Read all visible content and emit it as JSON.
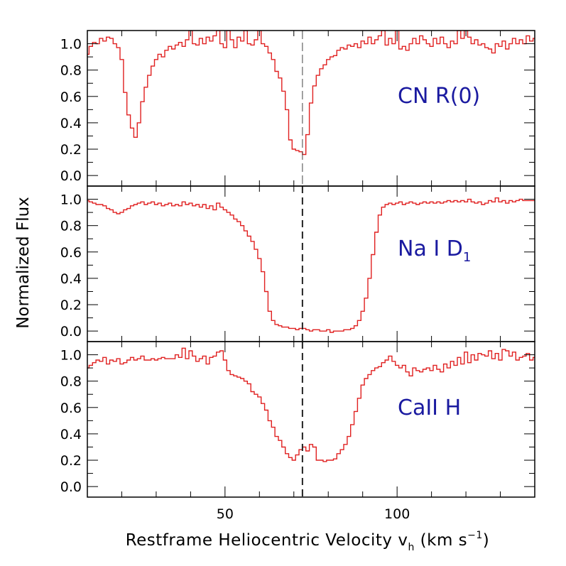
{
  "chart_data": {
    "type": "line",
    "style": "step",
    "title": "",
    "xlabel": "Restframe Heliocentric Velocity v",
    "xlabel_sub": "h",
    "xlabel_units": "(km s",
    "xlabel_units_sup": "−1",
    "xlabel_units_close": ")",
    "ylabel": "Normalized Flux",
    "xlim": [
      10,
      140
    ],
    "ylim": [
      -0.08,
      1.1
    ],
    "xticks": [
      50,
      100
    ],
    "xtick_labels": [
      "50",
      "100"
    ],
    "yticks": [
      0.0,
      0.2,
      0.4,
      0.6,
      0.8,
      1.0
    ],
    "ytick_labels": [
      "0.0",
      "0.2",
      "0.4",
      "0.6",
      "0.8",
      "1.0"
    ],
    "reference_velocity": 72.5,
    "line_color": "#e02020",
    "label_color": "#1a1aa0",
    "panels": [
      {
        "name": "cn",
        "label": "CN R(0)",
        "dashed_ref_style": "thin",
        "x": [
          10,
          11,
          12,
          13,
          14,
          15,
          16,
          17,
          18,
          19,
          20,
          21,
          22,
          23,
          24,
          25,
          26,
          27,
          28,
          29,
          30,
          31,
          32,
          33,
          34,
          35,
          36,
          37,
          38,
          39,
          40,
          41,
          42,
          43,
          44,
          45,
          46,
          47,
          48,
          49,
          50,
          51,
          52,
          53,
          54,
          55,
          56,
          57,
          58,
          59,
          60,
          61,
          62,
          63,
          64,
          65,
          66,
          67,
          68,
          69,
          70,
          71,
          72,
          73,
          74,
          75,
          76,
          77,
          78,
          79,
          80,
          81,
          82,
          83,
          84,
          85,
          86,
          87,
          88,
          89,
          90,
          91,
          92,
          93,
          94,
          95,
          96,
          97,
          98,
          99,
          100,
          101,
          102,
          103,
          104,
          105,
          106,
          107,
          108,
          109,
          110,
          111,
          112,
          113,
          114,
          115,
          116,
          117,
          118,
          119,
          120,
          121,
          122,
          123,
          124,
          125,
          126,
          127,
          128,
          129,
          130,
          131,
          132,
          133,
          134,
          135,
          136,
          137,
          138,
          139,
          140
        ],
        "y": [
          0.92,
          0.98,
          1.01,
          1.0,
          1.04,
          1.02,
          1.05,
          1.04,
          1.0,
          0.97,
          0.88,
          0.63,
          0.46,
          0.36,
          0.29,
          0.4,
          0.56,
          0.67,
          0.76,
          0.83,
          0.88,
          0.92,
          0.9,
          0.95,
          0.98,
          0.96,
          0.99,
          1.01,
          0.98,
          1.03,
          1.1,
          1.0,
          0.99,
          1.04,
          1.0,
          1.05,
          1.02,
          1.06,
          1.1,
          1.0,
          0.97,
          1.1,
          1.03,
          0.97,
          1.05,
          1.02,
          1.1,
          1.0,
          0.99,
          1.03,
          1.1,
          1.0,
          0.98,
          0.93,
          0.88,
          0.79,
          0.74,
          0.64,
          0.5,
          0.27,
          0.2,
          0.19,
          0.18,
          0.16,
          0.31,
          0.55,
          0.68,
          0.76,
          0.81,
          0.84,
          0.88,
          0.9,
          0.91,
          0.95,
          0.97,
          0.96,
          0.99,
          0.98,
          1.0,
          0.97,
          1.02,
          1.0,
          1.05,
          1.0,
          1.03,
          1.06,
          1.1,
          0.99,
          1.04,
          1.0,
          1.1,
          0.96,
          0.98,
          0.95,
          1.0,
          1.04,
          1.0,
          1.06,
          1.03,
          1.0,
          0.98,
          1.04,
          1.0,
          1.05,
          1.0,
          0.97,
          1.02,
          1.0,
          1.1,
          1.04,
          1.1,
          1.05,
          1.0,
          1.03,
          0.99,
          1.0,
          0.97,
          0.96,
          0.93,
          1.0,
          0.98,
          1.02,
          0.96,
          1.0,
          1.04,
          1.0,
          1.03,
          1.0,
          1.06,
          1.02,
          1.04
        ]
      },
      {
        "name": "na",
        "label": "Na I D",
        "label_sub": "1",
        "dashed_ref_style": "thick",
        "x": [
          10,
          11,
          12,
          13,
          14,
          15,
          16,
          17,
          18,
          19,
          20,
          21,
          22,
          23,
          24,
          25,
          26,
          27,
          28,
          29,
          30,
          31,
          32,
          33,
          34,
          35,
          36,
          37,
          38,
          39,
          40,
          41,
          42,
          43,
          44,
          45,
          46,
          47,
          48,
          49,
          50,
          51,
          52,
          53,
          54,
          55,
          56,
          57,
          58,
          59,
          60,
          61,
          62,
          63,
          64,
          65,
          66,
          67,
          68,
          69,
          70,
          71,
          72,
          73,
          74,
          75,
          76,
          77,
          78,
          79,
          80,
          81,
          82,
          83,
          84,
          85,
          86,
          87,
          88,
          89,
          90,
          91,
          92,
          93,
          94,
          95,
          96,
          97,
          98,
          99,
          100,
          101,
          102,
          103,
          104,
          105,
          106,
          107,
          108,
          109,
          110,
          111,
          112,
          113,
          114,
          115,
          116,
          117,
          118,
          119,
          120,
          121,
          122,
          123,
          124,
          125,
          126,
          127,
          128,
          129,
          130,
          131,
          132,
          133,
          134,
          135,
          136,
          137,
          138,
          139,
          140
        ],
        "y": [
          0.99,
          0.98,
          0.97,
          0.96,
          0.96,
          0.95,
          0.93,
          0.92,
          0.9,
          0.89,
          0.9,
          0.92,
          0.93,
          0.95,
          0.96,
          0.97,
          0.98,
          0.96,
          0.97,
          0.98,
          0.96,
          0.97,
          0.95,
          0.96,
          0.97,
          0.95,
          0.96,
          0.95,
          0.98,
          0.96,
          0.97,
          0.95,
          0.96,
          0.94,
          0.96,
          0.93,
          0.95,
          0.92,
          0.97,
          0.94,
          0.92,
          0.9,
          0.88,
          0.85,
          0.83,
          0.8,
          0.76,
          0.72,
          0.68,
          0.62,
          0.55,
          0.45,
          0.3,
          0.15,
          0.08,
          0.05,
          0.04,
          0.03,
          0.03,
          0.02,
          0.02,
          0.01,
          0.02,
          0.02,
          0.01,
          0.0,
          0.01,
          0.01,
          0.0,
          0.0,
          0.01,
          -0.01,
          0.0,
          0.0,
          0.0,
          0.01,
          0.01,
          0.02,
          0.04,
          0.08,
          0.15,
          0.25,
          0.4,
          0.58,
          0.75,
          0.88,
          0.94,
          0.96,
          0.97,
          0.96,
          0.97,
          0.98,
          0.96,
          0.97,
          0.98,
          0.97,
          0.96,
          0.97,
          0.98,
          0.97,
          0.98,
          0.97,
          0.98,
          0.97,
          0.98,
          0.99,
          0.98,
          0.99,
          0.98,
          0.99,
          0.98,
          1.0,
          0.98,
          0.97,
          0.98,
          0.96,
          0.97,
          0.99,
          0.98,
          1.01,
          0.98,
          0.99,
          0.97,
          0.99,
          0.98,
          0.99,
          1.0,
          0.99,
          0.99,
          0.99,
          0.99
        ]
      },
      {
        "name": "ca",
        "label": "CaII H",
        "dashed_ref_style": "thick",
        "x": [
          10,
          11,
          12,
          13,
          14,
          15,
          16,
          17,
          18,
          19,
          20,
          21,
          22,
          23,
          24,
          25,
          26,
          27,
          28,
          29,
          30,
          31,
          32,
          33,
          34,
          35,
          36,
          37,
          38,
          39,
          40,
          41,
          42,
          43,
          44,
          45,
          46,
          47,
          48,
          49,
          50,
          51,
          52,
          53,
          54,
          55,
          56,
          57,
          58,
          59,
          60,
          61,
          62,
          63,
          64,
          65,
          66,
          67,
          68,
          69,
          70,
          71,
          72,
          73,
          74,
          75,
          76,
          77,
          78,
          79,
          80,
          81,
          82,
          83,
          84,
          85,
          86,
          87,
          88,
          89,
          90,
          91,
          92,
          93,
          94,
          95,
          96,
          97,
          98,
          99,
          100,
          101,
          102,
          103,
          104,
          105,
          106,
          107,
          108,
          109,
          110,
          111,
          112,
          113,
          114,
          115,
          116,
          117,
          118,
          119,
          120,
          121,
          122,
          123,
          124,
          125,
          126,
          127,
          128,
          129,
          130,
          131,
          132,
          133,
          134,
          135,
          136,
          137,
          138,
          139,
          140
        ],
        "y": [
          0.9,
          0.92,
          0.94,
          0.96,
          0.95,
          0.98,
          0.93,
          0.96,
          0.95,
          0.97,
          0.93,
          0.94,
          0.96,
          0.98,
          0.96,
          0.97,
          0.99,
          0.96,
          0.96,
          0.97,
          0.96,
          0.97,
          0.98,
          0.97,
          0.97,
          0.97,
          1.0,
          0.98,
          1.05,
          0.97,
          1.03,
          0.99,
          0.95,
          0.97,
          0.99,
          0.93,
          0.98,
          0.99,
          1.02,
          1.03,
          0.96,
          0.88,
          0.85,
          0.84,
          0.83,
          0.82,
          0.8,
          0.78,
          0.72,
          0.7,
          0.68,
          0.63,
          0.58,
          0.5,
          0.45,
          0.38,
          0.35,
          0.3,
          0.25,
          0.22,
          0.2,
          0.24,
          0.28,
          0.3,
          0.27,
          0.32,
          0.3,
          0.2,
          0.2,
          0.19,
          0.2,
          0.2,
          0.21,
          0.25,
          0.28,
          0.32,
          0.38,
          0.47,
          0.57,
          0.67,
          0.77,
          0.82,
          0.85,
          0.88,
          0.9,
          0.91,
          0.94,
          0.96,
          0.99,
          0.95,
          0.92,
          0.9,
          0.92,
          0.87,
          0.84,
          0.9,
          0.88,
          0.87,
          0.89,
          0.9,
          0.88,
          0.92,
          0.89,
          0.87,
          0.93,
          0.9,
          0.95,
          0.92,
          0.98,
          0.93,
          1.02,
          0.94,
          1.0,
          0.96,
          1.01,
          1.0,
          0.99,
          1.03,
          0.97,
          1.01,
          0.96,
          1.04,
          1.03,
          0.99,
          1.02,
          0.96,
          0.98,
          0.99,
          1.01,
          0.96,
          0.98
        ]
      }
    ]
  }
}
